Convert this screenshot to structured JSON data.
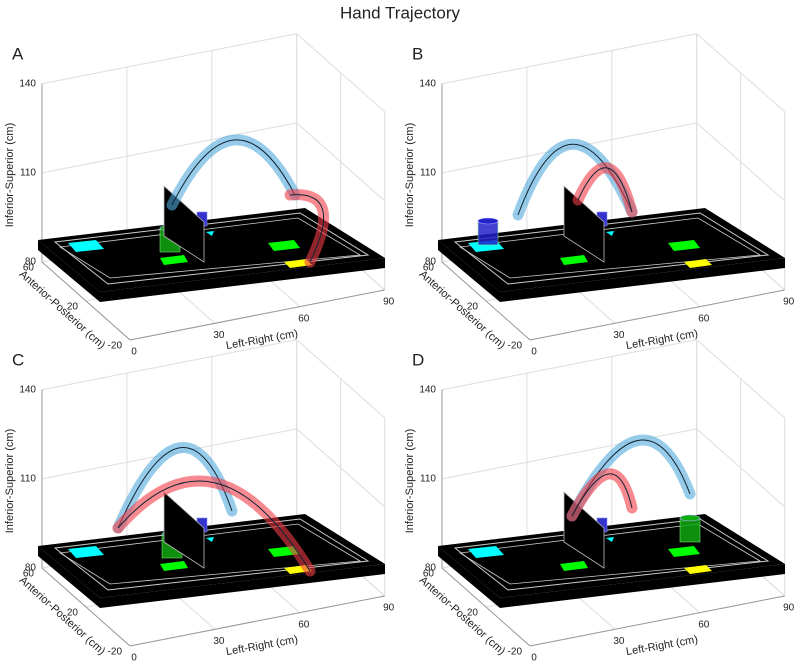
{
  "title": "Hand Trajectory",
  "panels": [
    {
      "label": "A",
      "z_axis": {
        "label": "Inferior-Superior (cm)",
        "ticks": [
          80,
          110,
          140
        ]
      },
      "y_axis": {
        "label": "Anterior-Posterior (cm)",
        "ticks": [
          -20,
          20,
          60
        ]
      },
      "x_axis": {
        "label": "Left-Right (cm)",
        "ticks": [
          0,
          30,
          60,
          90
        ]
      }
    },
    {
      "label": "B",
      "z_axis": {
        "label": "Inferior-Superior (cm)",
        "ticks": [
          80,
          110,
          140
        ]
      },
      "y_axis": {
        "label": "Anterior-Posterior (cm)",
        "ticks": [
          -20,
          20,
          60
        ]
      },
      "x_axis": {
        "label": "Left-Right (cm)",
        "ticks": [
          0,
          30,
          60,
          90
        ]
      }
    },
    {
      "label": "C",
      "z_axis": {
        "label": "Inferior-Superior (cm)",
        "ticks": [
          80,
          110,
          140
        ]
      },
      "y_axis": {
        "label": "Anterior-Posterior (cm)",
        "ticks": [
          -20,
          20,
          60
        ]
      },
      "x_axis": {
        "label": "Left-Right (cm)",
        "ticks": [
          0,
          30,
          60,
          90
        ]
      }
    },
    {
      "label": "D",
      "z_axis": {
        "label": "Inferior-Superior (cm)",
        "ticks": [
          80,
          110,
          140
        ]
      },
      "y_axis": {
        "label": "Anterior-Posterior (cm)",
        "ticks": [
          -20,
          20,
          60
        ]
      },
      "x_axis": {
        "label": "Left-Right (cm)",
        "ticks": [
          0,
          30,
          60,
          90
        ]
      }
    }
  ]
}
